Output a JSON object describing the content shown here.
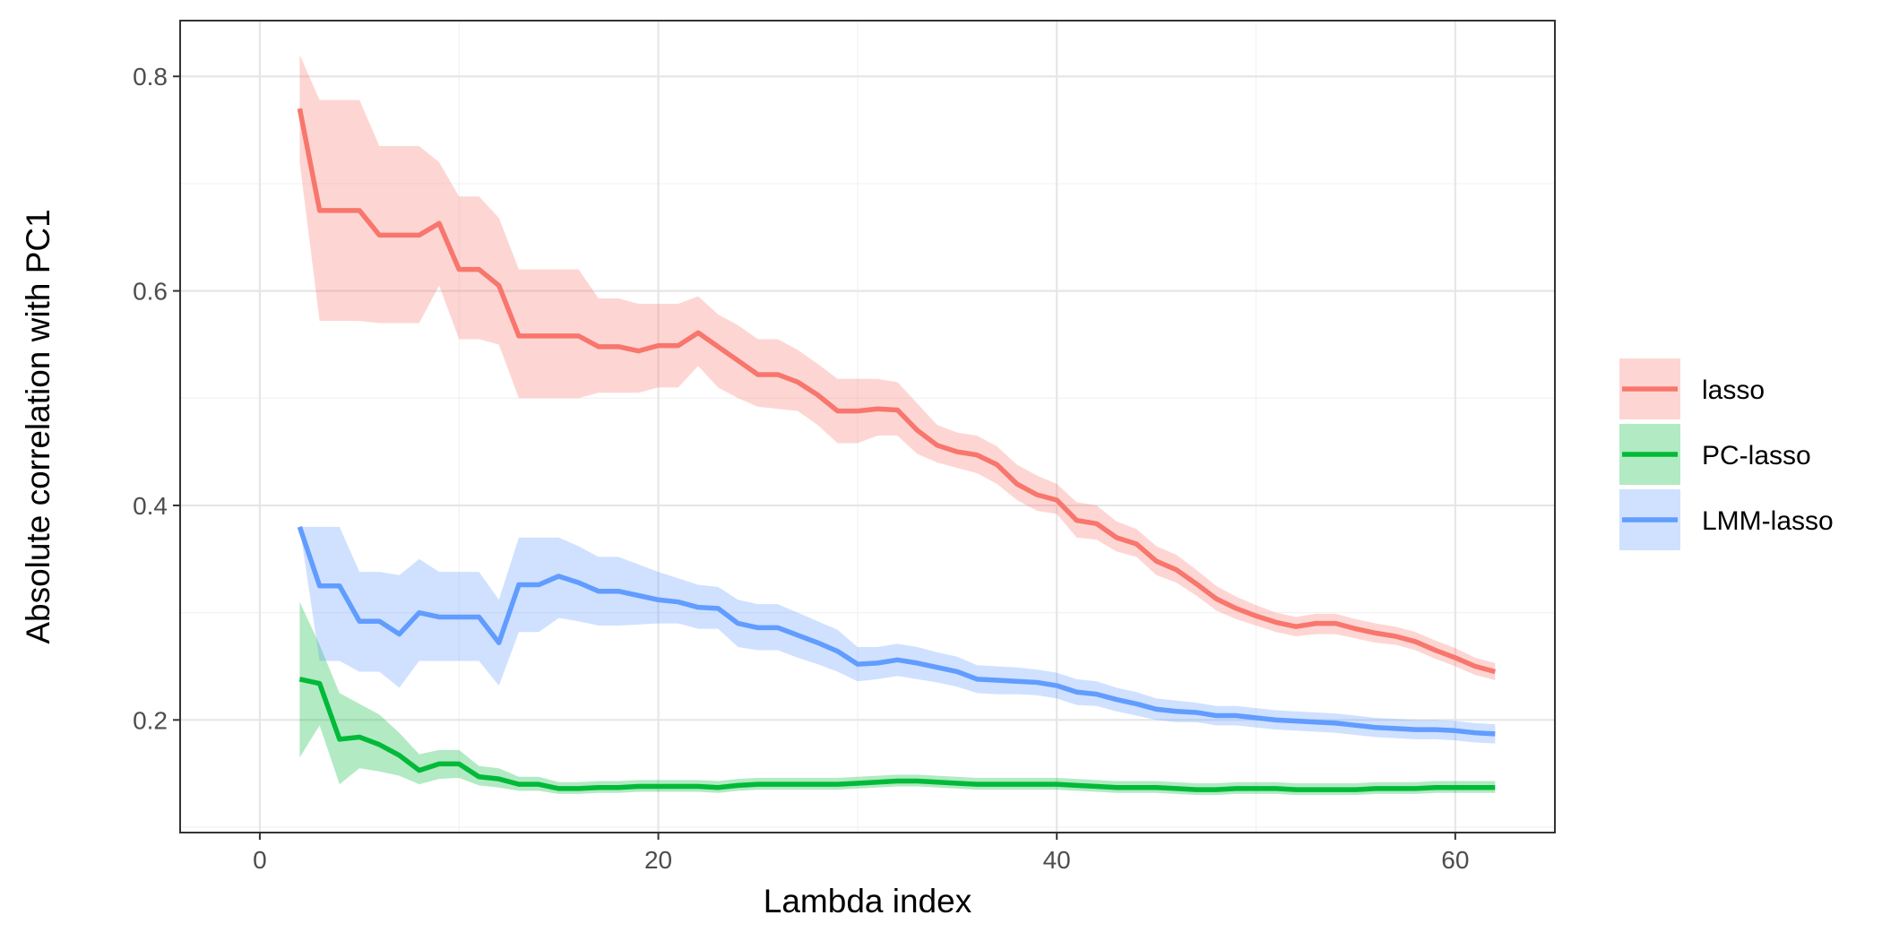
{
  "chart_data": {
    "type": "line",
    "title": "",
    "xlabel": "Lambda index",
    "ylabel": "Absolute correlation with PC1",
    "xlim": [
      -4,
      65
    ],
    "ylim": [
      0.095,
      0.852
    ],
    "x_ticks": [
      0,
      20,
      40,
      60
    ],
    "x_tick_labels": [
      "0",
      "20",
      "40",
      "60"
    ],
    "y_ticks": [
      0.2,
      0.4,
      0.6,
      0.8
    ],
    "y_tick_labels": [
      "0.2",
      "0.4",
      "0.6",
      "0.8"
    ],
    "grid": true,
    "legend_position": "right",
    "series": [
      {
        "name": "lasso",
        "color": "#F8766D",
        "band_color": "#F8766D",
        "x": [
          2,
          3,
          4,
          5,
          6,
          7,
          8,
          9,
          10,
          11,
          12,
          13,
          14,
          15,
          16,
          17,
          18,
          19,
          20,
          21,
          22,
          23,
          24,
          25,
          26,
          27,
          28,
          29,
          30,
          31,
          32,
          33,
          34,
          35,
          36,
          37,
          38,
          39,
          40,
          41,
          42,
          43,
          44,
          45,
          46,
          47,
          48,
          49,
          50,
          51,
          52,
          53,
          54,
          55,
          56,
          57,
          58,
          59,
          60,
          61,
          62
        ],
        "values": [
          0.77,
          0.675,
          0.675,
          0.675,
          0.652,
          0.652,
          0.652,
          0.663,
          0.62,
          0.62,
          0.605,
          0.558,
          0.558,
          0.558,
          0.558,
          0.548,
          0.548,
          0.544,
          0.549,
          0.549,
          0.561,
          0.548,
          0.535,
          0.522,
          0.522,
          0.515,
          0.503,
          0.488,
          0.488,
          0.49,
          0.489,
          0.47,
          0.456,
          0.45,
          0.447,
          0.438,
          0.42,
          0.41,
          0.405,
          0.386,
          0.383,
          0.37,
          0.364,
          0.348,
          0.34,
          0.327,
          0.313,
          0.304,
          0.297,
          0.291,
          0.287,
          0.29,
          0.29,
          0.285,
          0.281,
          0.278,
          0.273,
          0.265,
          0.258,
          0.25,
          0.245
        ],
        "lower": [
          0.72,
          0.572,
          0.572,
          0.572,
          0.57,
          0.57,
          0.57,
          0.605,
          0.555,
          0.555,
          0.55,
          0.5,
          0.5,
          0.5,
          0.5,
          0.505,
          0.505,
          0.505,
          0.51,
          0.51,
          0.53,
          0.51,
          0.5,
          0.492,
          0.49,
          0.488,
          0.475,
          0.458,
          0.458,
          0.465,
          0.465,
          0.448,
          0.44,
          0.435,
          0.43,
          0.42,
          0.405,
          0.395,
          0.392,
          0.37,
          0.368,
          0.357,
          0.352,
          0.335,
          0.328,
          0.316,
          0.302,
          0.294,
          0.288,
          0.282,
          0.278,
          0.28,
          0.28,
          0.276,
          0.272,
          0.27,
          0.265,
          0.257,
          0.25,
          0.242,
          0.237
        ],
        "upper": [
          0.82,
          0.778,
          0.778,
          0.778,
          0.735,
          0.735,
          0.735,
          0.72,
          0.688,
          0.688,
          0.668,
          0.62,
          0.62,
          0.62,
          0.62,
          0.593,
          0.593,
          0.588,
          0.588,
          0.588,
          0.595,
          0.578,
          0.568,
          0.555,
          0.555,
          0.545,
          0.532,
          0.518,
          0.518,
          0.518,
          0.515,
          0.495,
          0.475,
          0.468,
          0.465,
          0.455,
          0.438,
          0.428,
          0.42,
          0.403,
          0.4,
          0.385,
          0.378,
          0.362,
          0.354,
          0.34,
          0.325,
          0.315,
          0.307,
          0.3,
          0.296,
          0.299,
          0.299,
          0.294,
          0.29,
          0.287,
          0.282,
          0.274,
          0.267,
          0.258,
          0.253
        ]
      },
      {
        "name": "PC-lasso",
        "color": "#00BA38",
        "band_color": "#00BA38",
        "x": [
          2,
          3,
          4,
          5,
          6,
          7,
          8,
          9,
          10,
          11,
          12,
          13,
          14,
          15,
          16,
          17,
          18,
          19,
          20,
          21,
          22,
          23,
          24,
          25,
          26,
          27,
          28,
          29,
          30,
          31,
          32,
          33,
          34,
          35,
          36,
          37,
          38,
          39,
          40,
          41,
          42,
          43,
          44,
          45,
          46,
          47,
          48,
          49,
          50,
          51,
          52,
          53,
          54,
          55,
          56,
          57,
          58,
          59,
          60,
          61,
          62
        ],
        "values": [
          0.238,
          0.234,
          0.182,
          0.184,
          0.177,
          0.167,
          0.153,
          0.159,
          0.159,
          0.147,
          0.145,
          0.14,
          0.14,
          0.136,
          0.136,
          0.137,
          0.137,
          0.138,
          0.138,
          0.138,
          0.138,
          0.137,
          0.139,
          0.14,
          0.14,
          0.14,
          0.14,
          0.14,
          0.141,
          0.142,
          0.143,
          0.143,
          0.142,
          0.141,
          0.14,
          0.14,
          0.14,
          0.14,
          0.14,
          0.139,
          0.138,
          0.137,
          0.137,
          0.137,
          0.136,
          0.135,
          0.135,
          0.136,
          0.136,
          0.136,
          0.135,
          0.135,
          0.135,
          0.135,
          0.136,
          0.136,
          0.136,
          0.137,
          0.137,
          0.137,
          0.137
        ],
        "lower": [
          0.165,
          0.195,
          0.14,
          0.155,
          0.152,
          0.148,
          0.14,
          0.145,
          0.146,
          0.139,
          0.137,
          0.134,
          0.134,
          0.131,
          0.131,
          0.132,
          0.132,
          0.133,
          0.133,
          0.133,
          0.133,
          0.132,
          0.134,
          0.135,
          0.135,
          0.135,
          0.135,
          0.135,
          0.136,
          0.137,
          0.138,
          0.138,
          0.137,
          0.136,
          0.135,
          0.135,
          0.135,
          0.135,
          0.135,
          0.134,
          0.133,
          0.132,
          0.132,
          0.132,
          0.131,
          0.13,
          0.13,
          0.131,
          0.131,
          0.131,
          0.13,
          0.13,
          0.13,
          0.13,
          0.131,
          0.131,
          0.131,
          0.132,
          0.132,
          0.132,
          0.132
        ],
        "upper": [
          0.31,
          0.27,
          0.225,
          0.215,
          0.205,
          0.188,
          0.168,
          0.172,
          0.172,
          0.157,
          0.155,
          0.147,
          0.147,
          0.142,
          0.142,
          0.143,
          0.143,
          0.144,
          0.144,
          0.144,
          0.144,
          0.143,
          0.145,
          0.146,
          0.146,
          0.146,
          0.146,
          0.146,
          0.147,
          0.148,
          0.149,
          0.149,
          0.148,
          0.147,
          0.146,
          0.146,
          0.146,
          0.146,
          0.146,
          0.145,
          0.144,
          0.143,
          0.143,
          0.143,
          0.142,
          0.141,
          0.141,
          0.142,
          0.142,
          0.142,
          0.141,
          0.141,
          0.141,
          0.141,
          0.142,
          0.142,
          0.142,
          0.143,
          0.143,
          0.143,
          0.143
        ]
      },
      {
        "name": "LMM-lasso",
        "color": "#619CFF",
        "band_color": "#619CFF",
        "x": [
          2,
          3,
          4,
          5,
          6,
          7,
          8,
          9,
          10,
          11,
          12,
          13,
          14,
          15,
          16,
          17,
          18,
          19,
          20,
          21,
          22,
          23,
          24,
          25,
          26,
          27,
          28,
          29,
          30,
          31,
          32,
          33,
          34,
          35,
          36,
          37,
          38,
          39,
          40,
          41,
          42,
          43,
          44,
          45,
          46,
          47,
          48,
          49,
          50,
          51,
          52,
          53,
          54,
          55,
          56,
          57,
          58,
          59,
          60,
          61,
          62
        ],
        "values": [
          0.38,
          0.325,
          0.325,
          0.292,
          0.292,
          0.28,
          0.3,
          0.296,
          0.296,
          0.296,
          0.272,
          0.326,
          0.326,
          0.334,
          0.328,
          0.32,
          0.32,
          0.316,
          0.312,
          0.31,
          0.305,
          0.304,
          0.29,
          0.286,
          0.286,
          0.279,
          0.272,
          0.264,
          0.252,
          0.253,
          0.256,
          0.253,
          0.249,
          0.245,
          0.238,
          0.237,
          0.236,
          0.235,
          0.232,
          0.226,
          0.224,
          0.219,
          0.215,
          0.21,
          0.208,
          0.207,
          0.204,
          0.204,
          0.202,
          0.2,
          0.199,
          0.198,
          0.197,
          0.195,
          0.193,
          0.192,
          0.191,
          0.191,
          0.19,
          0.188,
          0.187
        ],
        "lower": [
          0.38,
          0.255,
          0.255,
          0.245,
          0.245,
          0.23,
          0.255,
          0.255,
          0.255,
          0.255,
          0.232,
          0.282,
          0.282,
          0.295,
          0.292,
          0.288,
          0.288,
          0.289,
          0.29,
          0.29,
          0.285,
          0.285,
          0.268,
          0.265,
          0.265,
          0.258,
          0.252,
          0.245,
          0.236,
          0.238,
          0.241,
          0.238,
          0.235,
          0.231,
          0.225,
          0.224,
          0.224,
          0.223,
          0.22,
          0.214,
          0.213,
          0.208,
          0.204,
          0.2,
          0.198,
          0.198,
          0.195,
          0.195,
          0.193,
          0.191,
          0.19,
          0.189,
          0.188,
          0.186,
          0.184,
          0.183,
          0.182,
          0.182,
          0.181,
          0.179,
          0.178
        ],
        "upper": [
          0.38,
          0.38,
          0.38,
          0.338,
          0.338,
          0.335,
          0.35,
          0.338,
          0.338,
          0.338,
          0.312,
          0.37,
          0.37,
          0.37,
          0.362,
          0.352,
          0.352,
          0.345,
          0.338,
          0.332,
          0.326,
          0.324,
          0.312,
          0.308,
          0.308,
          0.3,
          0.292,
          0.284,
          0.268,
          0.268,
          0.271,
          0.268,
          0.263,
          0.259,
          0.251,
          0.25,
          0.249,
          0.247,
          0.244,
          0.238,
          0.236,
          0.23,
          0.226,
          0.22,
          0.218,
          0.216,
          0.213,
          0.213,
          0.211,
          0.209,
          0.208,
          0.207,
          0.206,
          0.204,
          0.202,
          0.201,
          0.2,
          0.2,
          0.199,
          0.197,
          0.196
        ]
      }
    ]
  }
}
